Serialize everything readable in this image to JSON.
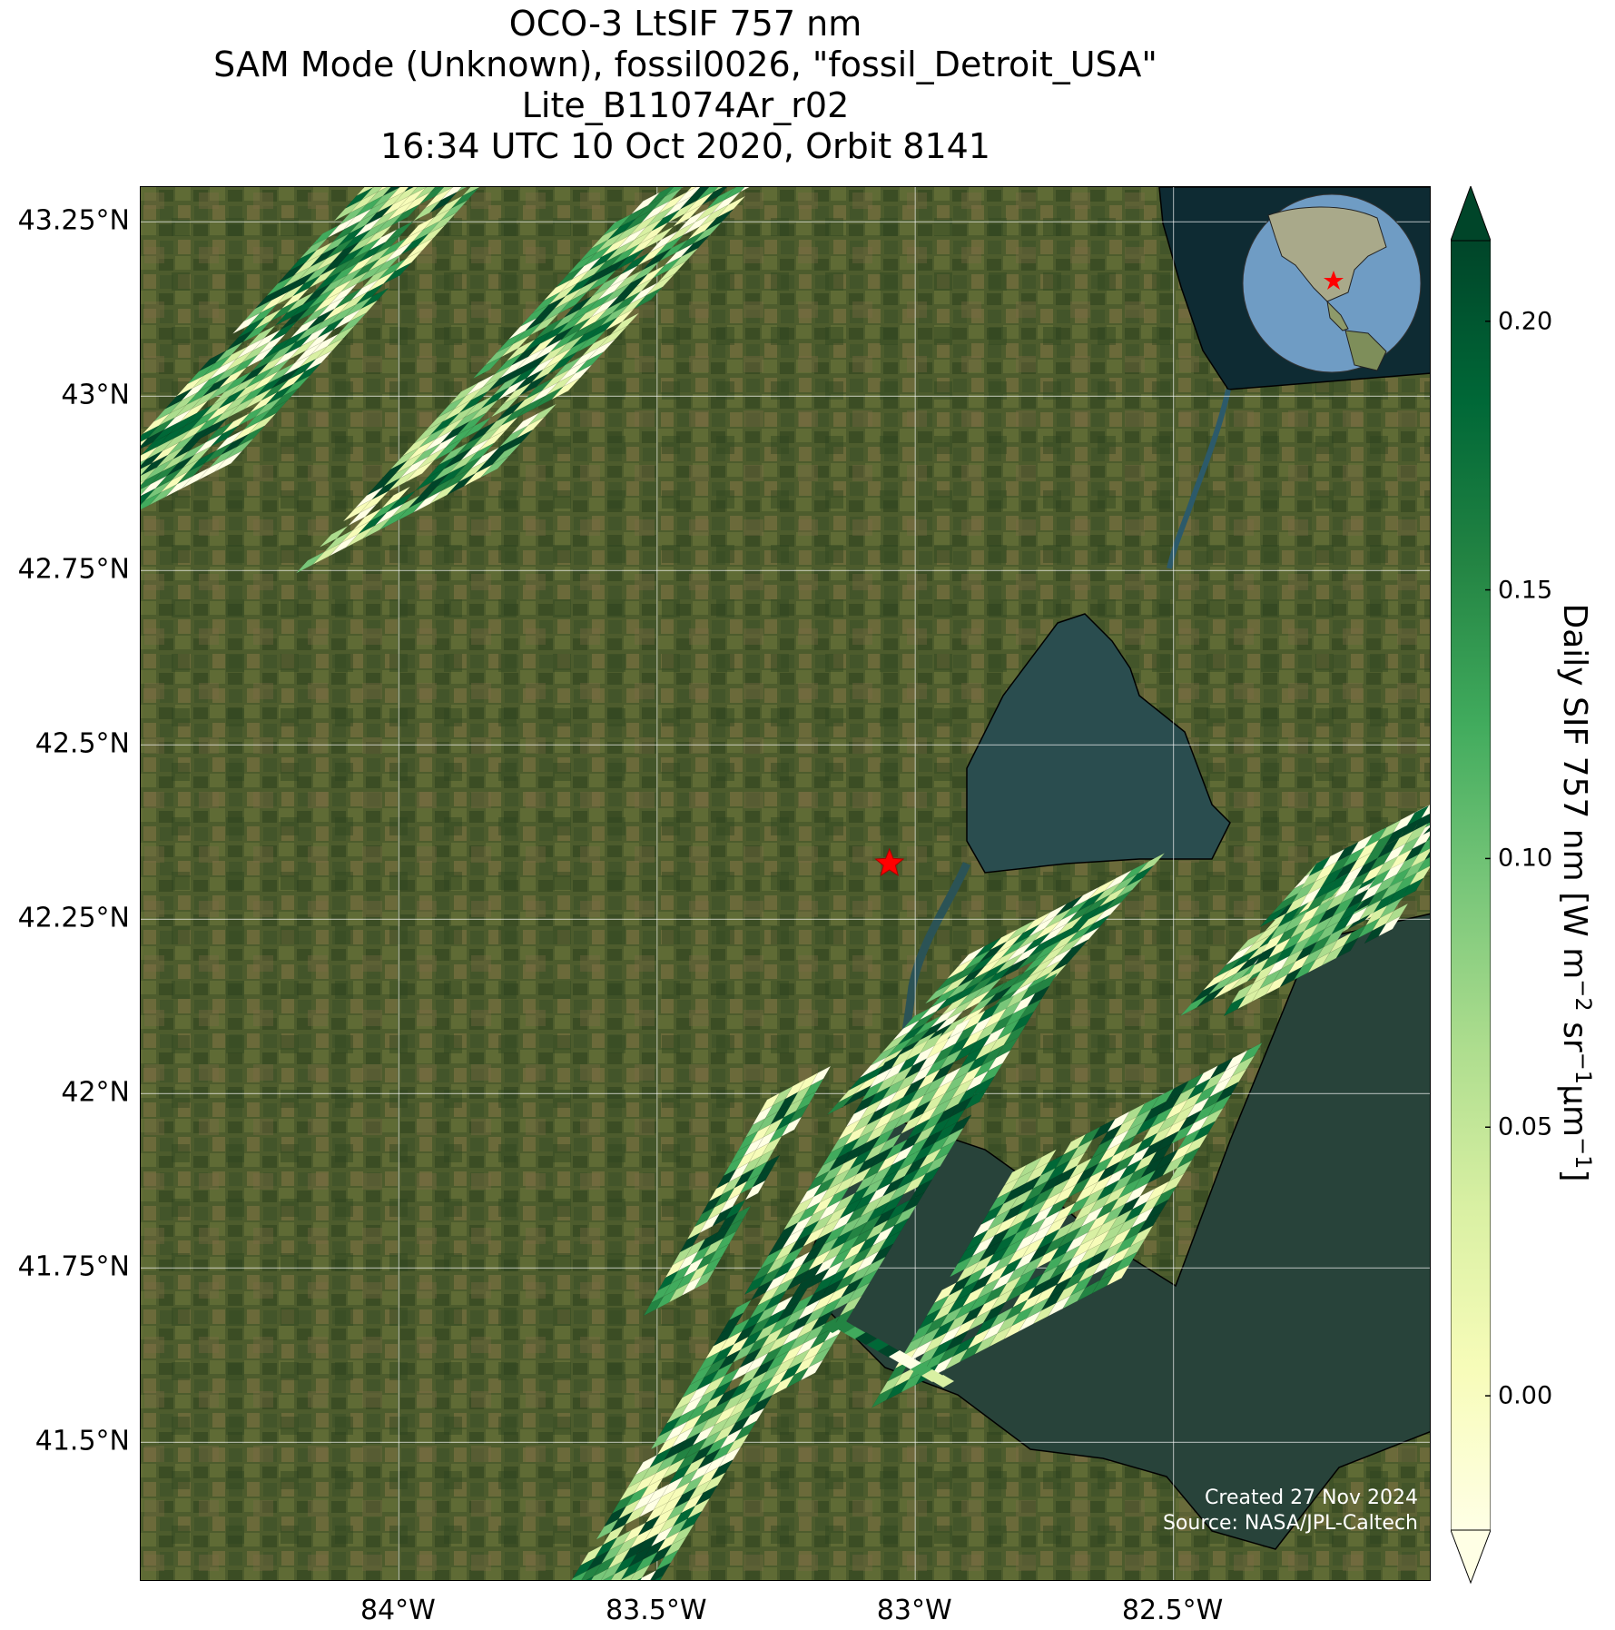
{
  "title": {
    "line1": "OCO-3 LtSIF 757 nm",
    "line2": "SAM Mode (Unknown), fossil0026, \"fossil_Detroit_USA\"",
    "line3": "Lite_B11074Ar_r02",
    "line4": "16:34 UTC 10 Oct 2020, Orbit 8141"
  },
  "map": {
    "extent": {
      "lon_min": -84.5,
      "lon_max": -82.0,
      "lat_min": 41.3,
      "lat_max": 43.3
    },
    "lat_ticks": [
      {
        "value": 43.25,
        "label": "43.25°N"
      },
      {
        "value": 43.0,
        "label": "43°N"
      },
      {
        "value": 42.75,
        "label": "42.75°N"
      },
      {
        "value": 42.5,
        "label": "42.5°N"
      },
      {
        "value": 42.25,
        "label": "42.25°N"
      },
      {
        "value": 42.0,
        "label": "42°N"
      },
      {
        "value": 41.75,
        "label": "41.75°N"
      },
      {
        "value": 41.5,
        "label": "41.5°N"
      }
    ],
    "lon_ticks": [
      {
        "value": -84.0,
        "label": "84°W"
      },
      {
        "value": -83.5,
        "label": "83.5°W"
      },
      {
        "value": -83.0,
        "label": "83°W"
      },
      {
        "value": -82.5,
        "label": "82.5°W"
      }
    ],
    "grid": true,
    "target": {
      "lon": -83.05,
      "lat": 42.33,
      "marker": "star-icon",
      "color": "#ff0000"
    },
    "basemap": {
      "land": "#4a5a2c",
      "water": "#1c3a38",
      "lake_erie": "#2d4a3a",
      "coast": "#000000"
    },
    "colormap": [
      "#ffffe5",
      "#f7fcb9",
      "#d9f0a3",
      "#addd8e",
      "#78c679",
      "#41ab5d",
      "#238443",
      "#006837",
      "#004529"
    ]
  },
  "colorbar": {
    "label": "Daily SIF 757 nm [W m",
    "label_exp1": "−2",
    "label_mid": " sr",
    "label_exp2": "−1",
    "label_mid2": "μm",
    "label_exp3": "−1",
    "label_end": "]",
    "vmin": -0.025,
    "vmax": 0.215,
    "extend": "both",
    "ticks": [
      {
        "value": 0.0,
        "label": "0.00"
      },
      {
        "value": 0.05,
        "label": "0.05"
      },
      {
        "value": 0.1,
        "label": "0.10"
      },
      {
        "value": 0.15,
        "label": "0.15"
      },
      {
        "value": 0.2,
        "label": "0.20"
      }
    ]
  },
  "credits": {
    "created": "Created 27 Nov 2024",
    "source": "Source: NASA/JPL-Caltech"
  }
}
